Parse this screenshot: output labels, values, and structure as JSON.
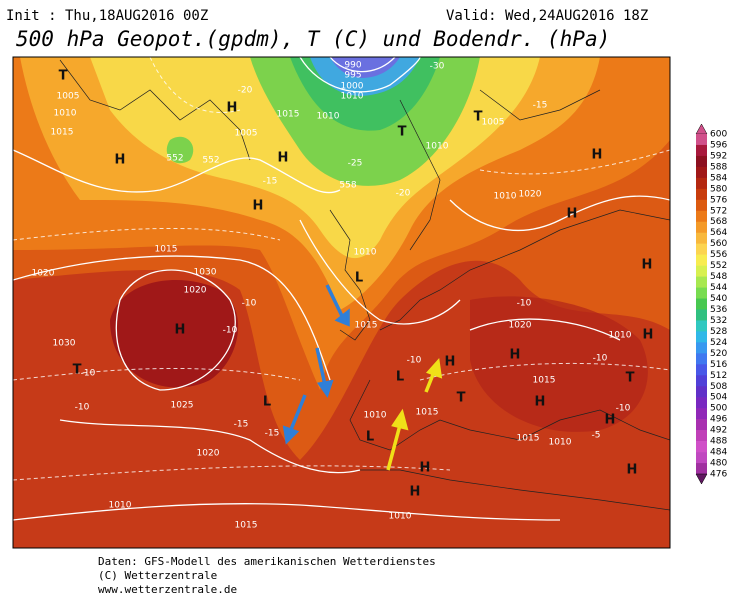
{
  "header": {
    "init": "Init : Thu,18AUG2016 00Z",
    "valid": "Valid: Wed,24AUG2016 18Z",
    "title": "500 hPa Geopot.(gpdm), T (C) und Bodendr. (hPa)"
  },
  "legend": {
    "levels": [
      "600",
      "596",
      "592",
      "588",
      "584",
      "580",
      "576",
      "572",
      "568",
      "564",
      "560",
      "556",
      "552",
      "548",
      "544",
      "540",
      "536",
      "532",
      "528",
      "524",
      "520",
      "516",
      "512",
      "508",
      "504",
      "500",
      "496",
      "492",
      "488",
      "484",
      "480",
      "476"
    ],
    "colors": [
      "#d0508a",
      "#a8183c",
      "#8c1020",
      "#a01818",
      "#b42810",
      "#c83c0c",
      "#dc5a10",
      "#ec7a18",
      "#f49a28",
      "#f8b83c",
      "#fcd450",
      "#f8ec50",
      "#d8f050",
      "#a8e850",
      "#78dc50",
      "#48c850",
      "#30c080",
      "#30c8c0",
      "#30b8e8",
      "#3898f0",
      "#4078f0",
      "#4858e8",
      "#5040d8",
      "#6030c8",
      "#7828c0",
      "#9028b8",
      "#a830b0",
      "#c040b8",
      "#d050c8",
      "#c048c0",
      "#a030a0",
      "#601860"
    ]
  },
  "map": {
    "labels": [
      "H",
      "H",
      "H",
      "H",
      "H",
      "H",
      "H",
      "H",
      "H",
      "H",
      "H",
      "H",
      "H",
      "H",
      "H",
      "H",
      "T",
      "T",
      "T",
      "T",
      "T",
      "T",
      "L",
      "L",
      "L",
      "L",
      "1005",
      "1010",
      "1015",
      "1005",
      "1015",
      "1010",
      "990",
      "995",
      "1000",
      "1010",
      "1010",
      "1010",
      "1015",
      "1010",
      "1005",
      "1020",
      "1020",
      "1030",
      "1020",
      "1030",
      "1025",
      "1020",
      "1015",
      "1010",
      "1015",
      "1020",
      "1010",
      "1015",
      "1010",
      "1015",
      "1010",
      "1015",
      "1010",
      "-15",
      "-20",
      "-25",
      "-30",
      "-15",
      "-20",
      "-10",
      "-10",
      "-15",
      "-15",
      "-10",
      "-10",
      "-10",
      "-10",
      "-10",
      "-10",
      "-5",
      "558",
      "552",
      "552"
    ]
  },
  "footer": {
    "lines": [
      "Daten: GFS-Modell des amerikanischen Wetterdienstes",
      "(C) Wetterzentrale",
      "www.wetterzentrale.de"
    ]
  }
}
